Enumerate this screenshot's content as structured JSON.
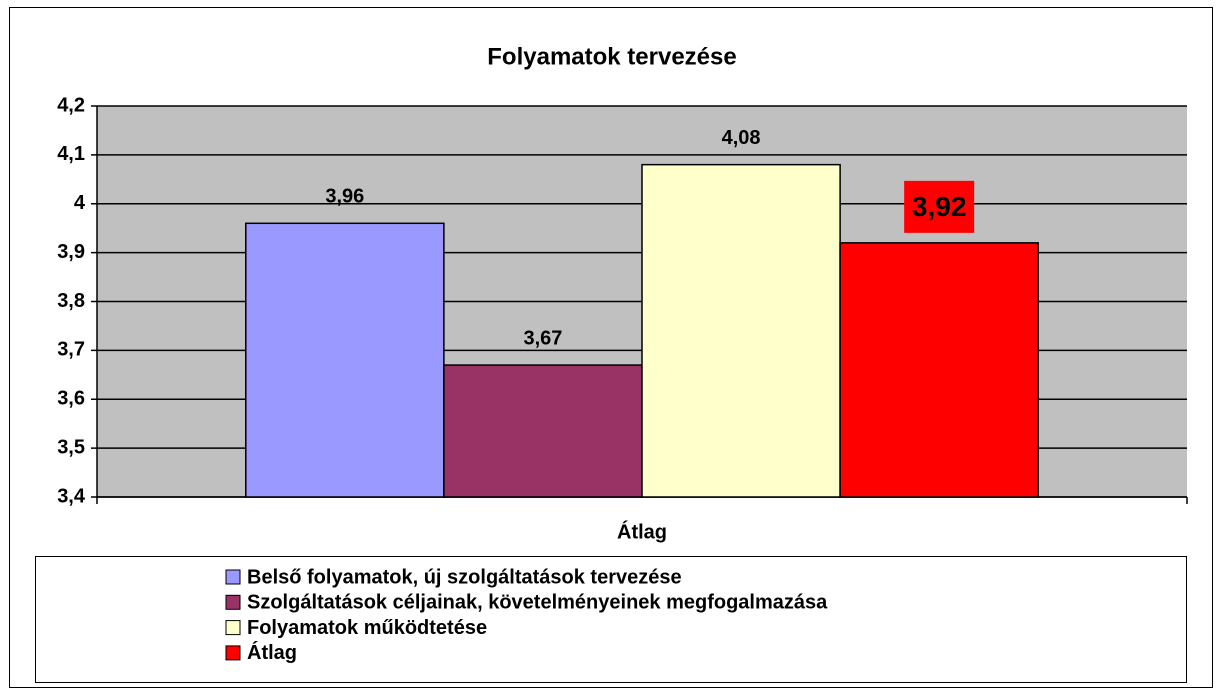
{
  "chart_data": {
    "type": "bar",
    "title": "Folyamatok tervezése",
    "categories": [
      "Átlag"
    ],
    "series": [
      {
        "name": "Belső folyamatok, új szolgáltatások tervezése",
        "color": "#9999ff",
        "values": [
          3.96
        ],
        "value_labels": [
          "3,96"
        ]
      },
      {
        "name": "Szolgáltatások céljainak, követelményeinek megfogalmazása",
        "color": "#993366",
        "values": [
          3.67
        ],
        "value_labels": [
          "3,67"
        ]
      },
      {
        "name": "Folyamatok működtetése",
        "color": "#ffffcc",
        "values": [
          4.08
        ],
        "value_labels": [
          "4,08"
        ]
      },
      {
        "name": "Átlag",
        "color": "#ff0000",
        "values": [
          3.92
        ],
        "value_labels": [
          "3,92"
        ],
        "label_background": "#ff0000"
      }
    ],
    "ylim": [
      3.4,
      4.2
    ],
    "yticks": [
      {
        "value": 3.4,
        "label": "3,4"
      },
      {
        "value": 3.5,
        "label": "3,5"
      },
      {
        "value": 3.6,
        "label": "3,6"
      },
      {
        "value": 3.7,
        "label": "3,7"
      },
      {
        "value": 3.8,
        "label": "3,8"
      },
      {
        "value": 3.9,
        "label": "3,9"
      },
      4,
      {
        "value": 4.1,
        "label": "4,1"
      },
      {
        "value": 4.2,
        "label": "4,2"
      }
    ],
    "grid": true,
    "plot_background": "#c0c0c0",
    "legend": "bottom"
  }
}
